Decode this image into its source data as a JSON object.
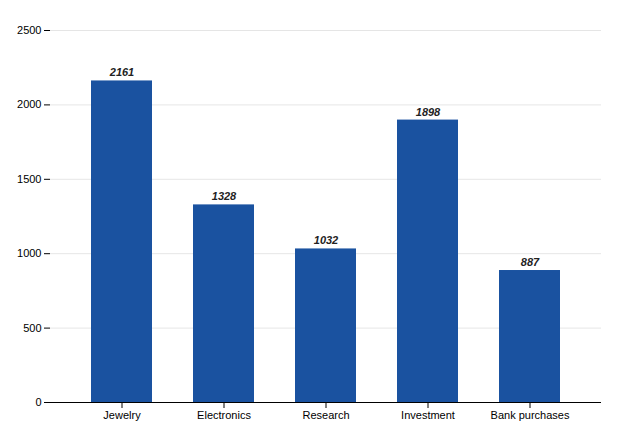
{
  "chart_data": {
    "type": "bar",
    "categories": [
      "Jewelry",
      "Electronics",
      "Research",
      "Investment",
      "Bank purchases"
    ],
    "values": [
      2161,
      1328,
      1032,
      1898,
      887
    ],
    "color": "#1A52A0",
    "ylim": [
      0,
      2500
    ],
    "yticks": [
      0,
      500,
      1000,
      1500,
      2000,
      2500
    ],
    "grid": true,
    "data_labels": true
  }
}
